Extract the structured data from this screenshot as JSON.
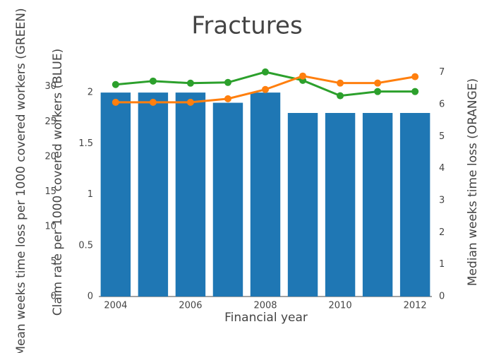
{
  "chart_data": {
    "type": "bar",
    "title": "Fractures",
    "xlabel": "Financial year",
    "ylabel": "Claim rate per 1000 covered workers (BLUE)",
    "y2label": "Median weeks time loss (ORANGE)",
    "y3label": "Mean weeks time loss per 1000 covered workers (GREEN)",
    "x": [
      2004,
      2005,
      2006,
      2007,
      2008,
      2009,
      2010,
      2011,
      2012
    ],
    "xlim": [
      2003.55,
      2012.45
    ],
    "xticks": [
      2004,
      2006,
      2008,
      2010,
      2012
    ],
    "ylim": [
      0,
      2.25
    ],
    "yticks": [
      0,
      0.5,
      1,
      1.5,
      2
    ],
    "y2lim": [
      0,
      7.17
    ],
    "y2ticks": [
      0,
      1,
      2,
      3,
      4,
      5,
      6,
      7
    ],
    "y3lim": [
      0,
      32.8
    ],
    "y3ticks": [
      0,
      5,
      10,
      15,
      20,
      25,
      30
    ],
    "series": [
      {
        "type": "bar",
        "color": "#1f77b4",
        "axis": "y",
        "values": [
          2.0,
          2.0,
          2.0,
          1.9,
          2.0,
          1.8,
          1.8,
          1.8,
          1.8
        ]
      },
      {
        "type": "line",
        "color": "#2ca02c",
        "axis": "y3",
        "values": [
          30.3,
          30.8,
          30.5,
          30.6,
          32.1,
          30.9,
          28.7,
          29.3,
          29.3
        ]
      },
      {
        "type": "line",
        "color": "#ff7f0e",
        "axis": "y2",
        "values": [
          6.07,
          6.07,
          6.07,
          6.18,
          6.47,
          6.89,
          6.67,
          6.67,
          6.87
        ]
      }
    ]
  }
}
